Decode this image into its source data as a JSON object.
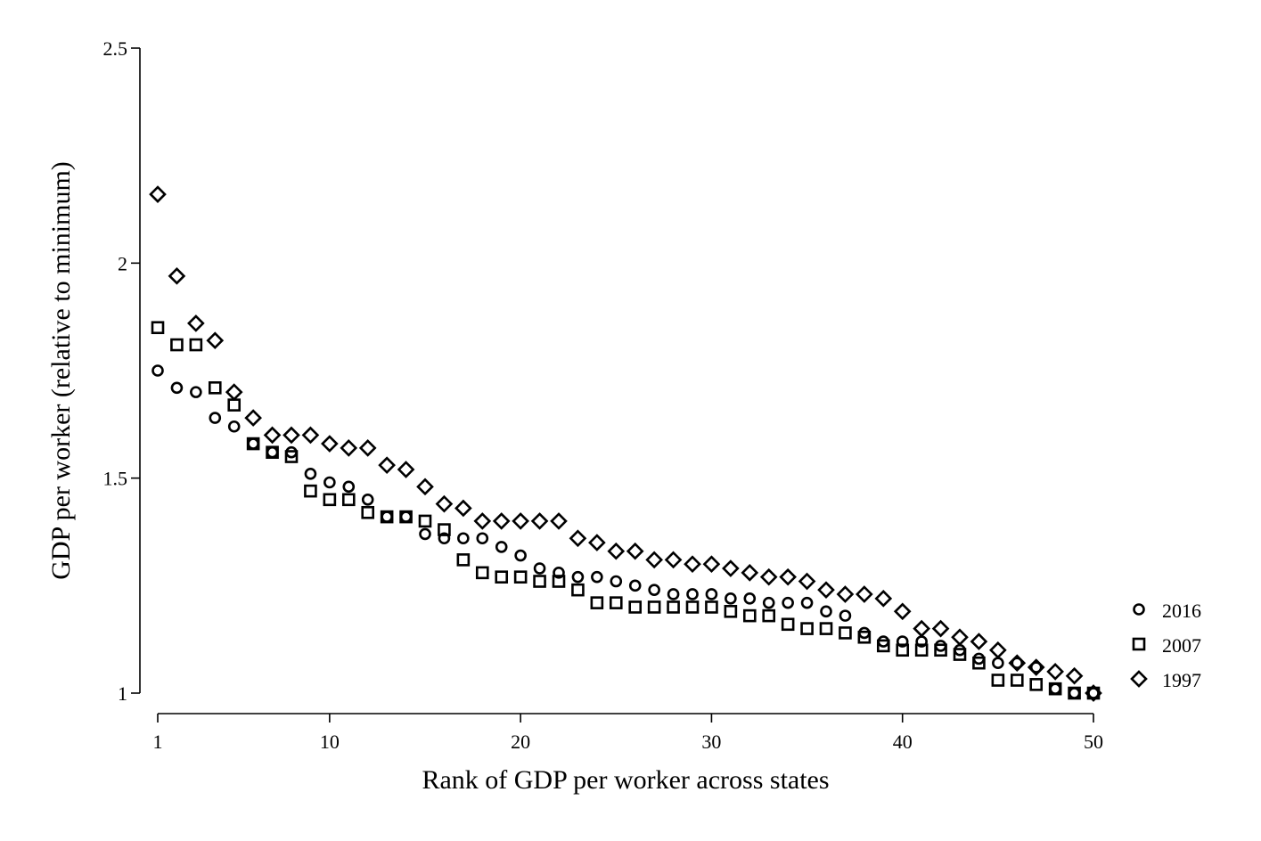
{
  "chart_data": {
    "type": "scatter",
    "xlabel": "Rank of GDP per worker across states",
    "ylabel": "GDP per worker (relative to minimum)",
    "xlim": [
      1,
      50
    ],
    "ylim": [
      1,
      2.5
    ],
    "xticks": [
      1,
      10,
      20,
      30,
      40,
      50
    ],
    "yticks": [
      1,
      1.5,
      2,
      2.5
    ],
    "ytick_labels": [
      "1",
      "1.5",
      "2",
      "2.5"
    ],
    "grid": false,
    "legend_position": "right",
    "series": [
      {
        "name": "2016",
        "marker": "circle",
        "x": [
          1,
          2,
          3,
          4,
          5,
          6,
          7,
          8,
          9,
          10,
          11,
          12,
          13,
          14,
          15,
          16,
          17,
          18,
          19,
          20,
          21,
          22,
          23,
          24,
          25,
          26,
          27,
          28,
          29,
          30,
          31,
          32,
          33,
          34,
          35,
          36,
          37,
          38,
          39,
          40,
          41,
          42,
          43,
          44,
          45,
          46,
          47,
          48,
          49,
          50
        ],
        "values": [
          1.75,
          1.71,
          1.7,
          1.64,
          1.62,
          1.58,
          1.56,
          1.56,
          1.51,
          1.49,
          1.48,
          1.45,
          1.41,
          1.41,
          1.37,
          1.36,
          1.36,
          1.36,
          1.34,
          1.32,
          1.29,
          1.28,
          1.27,
          1.27,
          1.26,
          1.25,
          1.24,
          1.23,
          1.23,
          1.23,
          1.22,
          1.22,
          1.21,
          1.21,
          1.21,
          1.19,
          1.18,
          1.14,
          1.12,
          1.12,
          1.12,
          1.11,
          1.1,
          1.08,
          1.07,
          1.07,
          1.06,
          1.01,
          1.0,
          1.0
        ]
      },
      {
        "name": "2007",
        "marker": "square",
        "x": [
          1,
          2,
          3,
          4,
          5,
          6,
          7,
          8,
          9,
          10,
          11,
          12,
          13,
          14,
          15,
          16,
          17,
          18,
          19,
          20,
          21,
          22,
          23,
          24,
          25,
          26,
          27,
          28,
          29,
          30,
          31,
          32,
          33,
          34,
          35,
          36,
          37,
          38,
          39,
          40,
          41,
          42,
          43,
          44,
          45,
          46,
          47,
          48,
          49,
          50
        ],
        "values": [
          1.85,
          1.81,
          1.81,
          1.71,
          1.67,
          1.58,
          1.56,
          1.55,
          1.47,
          1.45,
          1.45,
          1.42,
          1.41,
          1.41,
          1.4,
          1.38,
          1.31,
          1.28,
          1.27,
          1.27,
          1.26,
          1.26,
          1.24,
          1.21,
          1.21,
          1.2,
          1.2,
          1.2,
          1.2,
          1.2,
          1.19,
          1.18,
          1.18,
          1.16,
          1.15,
          1.15,
          1.14,
          1.13,
          1.11,
          1.1,
          1.1,
          1.1,
          1.09,
          1.07,
          1.03,
          1.03,
          1.02,
          1.01,
          1.0,
          1.0
        ]
      },
      {
        "name": "1997",
        "marker": "diamond",
        "x": [
          1,
          2,
          3,
          4,
          5,
          6,
          7,
          8,
          9,
          10,
          11,
          12,
          13,
          14,
          15,
          16,
          17,
          18,
          19,
          20,
          21,
          22,
          23,
          24,
          25,
          26,
          27,
          28,
          29,
          30,
          31,
          32,
          33,
          34,
          35,
          36,
          37,
          38,
          39,
          40,
          41,
          42,
          43,
          44,
          45,
          46,
          47,
          48,
          49,
          50
        ],
        "values": [
          2.16,
          1.97,
          1.86,
          1.82,
          1.7,
          1.64,
          1.6,
          1.6,
          1.6,
          1.58,
          1.57,
          1.57,
          1.53,
          1.52,
          1.48,
          1.44,
          1.43,
          1.4,
          1.4,
          1.4,
          1.4,
          1.4,
          1.36,
          1.35,
          1.33,
          1.33,
          1.31,
          1.31,
          1.3,
          1.3,
          1.29,
          1.28,
          1.27,
          1.27,
          1.26,
          1.24,
          1.23,
          1.23,
          1.22,
          1.19,
          1.15,
          1.15,
          1.13,
          1.12,
          1.1,
          1.07,
          1.06,
          1.05,
          1.04,
          1.0
        ]
      }
    ]
  }
}
